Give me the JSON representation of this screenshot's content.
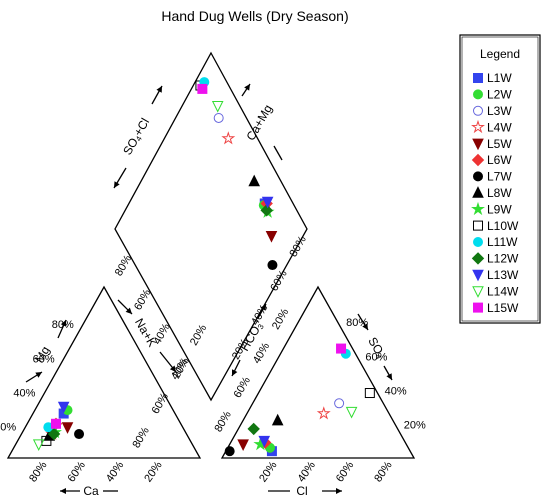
{
  "chart_data": {
    "type": "scatter",
    "subtype": "piper-diagram",
    "title": "Hand Dug Wells (Dry Season)",
    "legend": {
      "title": "Legend",
      "placement": "right"
    },
    "axes": {
      "cation": {
        "left_label": "Mg",
        "bottom_label": "Ca",
        "right_label": "Na+K"
      },
      "anion": {
        "left_label": "HCO",
        "left_sub": "3",
        "bottom_label": "Cl",
        "right_label": "SO",
        "right_sub": "4"
      },
      "diamond": {
        "upper_left_label": "SO",
        "upper_left_sub": "4",
        "upper_left_suffix": "+Cl",
        "upper_right_label": "Ca+Mg"
      },
      "ticks": [
        "20%",
        "40%",
        "60%",
        "80%"
      ]
    },
    "series": [
      {
        "name": "L1W",
        "marker": "square",
        "color": "#3344ee",
        "filled": true,
        "cation": {
          "ca": 58,
          "mg": 26
        },
        "anion": {
          "cl": 24,
          "so4": 4
        },
        "diamond": {
          "so4cl": 28,
          "camg": 84
        }
      },
      {
        "name": "L2W",
        "marker": "circle",
        "color": "#33dd33",
        "filled": true,
        "cation": {
          "ca": 55,
          "mg": 28
        },
        "anion": {
          "cl": 22,
          "so4": 6
        },
        "diamond": {
          "so4cl": 28,
          "camg": 83
        }
      },
      {
        "name": "L3W",
        "marker": "circle",
        "color": "#6666dd",
        "filled": false,
        "cation": {
          "ca": 69,
          "mg": 16
        },
        "anion": {
          "cl": 45,
          "so4": 32
        },
        "diamond": {
          "so4cl": 77,
          "camg": 85
        }
      },
      {
        "name": "L4W",
        "marker": "star",
        "color": "#ee4444",
        "filled": false,
        "cation": {
          "ca": 70,
          "mg": 14
        },
        "anion": {
          "cl": 40,
          "so4": 26
        },
        "diamond": {
          "so4cl": 66,
          "camg": 84
        }
      },
      {
        "name": "L5W",
        "marker": "triangle-down",
        "color": "#880000",
        "filled": true,
        "cation": {
          "ca": 60,
          "mg": 18
        },
        "anion": {
          "cl": 7,
          "so4": 8
        },
        "diamond": {
          "so4cl": 15,
          "camg": 78
        }
      },
      {
        "name": "L6W",
        "marker": "diamond",
        "color": "#ee3333",
        "filled": true,
        "cation": {
          "ca": 65,
          "mg": 20
        },
        "anion": {
          "cl": 18,
          "so4": 9
        },
        "diamond": {
          "so4cl": 27,
          "camg": 85
        }
      },
      {
        "name": "L7W",
        "marker": "circle",
        "color": "#000000",
        "filled": true,
        "cation": {
          "ca": 56,
          "mg": 14
        },
        "anion": {
          "cl": 2,
          "so4": 4
        },
        "diamond": {
          "so4cl": 6,
          "camg": 70
        }
      },
      {
        "name": "L8W",
        "marker": "triangle-up",
        "color": "#000000",
        "filled": true,
        "cation": {
          "ca": 72,
          "mg": 13
        },
        "anion": {
          "cl": 18,
          "so4": 22
        },
        "diamond": {
          "so4cl": 40,
          "camg": 85
        }
      },
      {
        "name": "L9W",
        "marker": "star",
        "color": "#33dd33",
        "filled": true,
        "cation": {
          "ca": 68,
          "mg": 15
        },
        "anion": {
          "cl": 16,
          "so4": 8
        },
        "diamond": {
          "so4cl": 24,
          "camg": 83
        }
      },
      {
        "name": "L10W",
        "marker": "square",
        "color": "#000000",
        "filled": false,
        "cation": {
          "ca": 75,
          "mg": 10
        },
        "anion": {
          "cl": 58,
          "so4": 38
        },
        "diamond": {
          "so4cl": 96,
          "camg": 85
        }
      },
      {
        "name": "L11W",
        "marker": "circle",
        "color": "#00ddee",
        "filled": true,
        "cation": {
          "ca": 70,
          "mg": 18
        },
        "anion": {
          "cl": 34,
          "so4": 61
        },
        "diamond": {
          "so4cl": 95,
          "camg": 88
        }
      },
      {
        "name": "L12W",
        "marker": "diamond",
        "color": "#117711",
        "filled": true,
        "cation": {
          "ca": 69,
          "mg": 14
        },
        "anion": {
          "cl": 8,
          "so4": 17
        },
        "diamond": {
          "so4cl": 25,
          "camg": 83
        }
      },
      {
        "name": "L13W",
        "marker": "triangle-down",
        "color": "#3333ee",
        "filled": true,
        "cation": {
          "ca": 56,
          "mg": 30
        },
        "anion": {
          "cl": 17,
          "so4": 10
        },
        "diamond": {
          "so4cl": 27,
          "camg": 86
        }
      },
      {
        "name": "L14W",
        "marker": "triangle-down",
        "color": "#33dd33",
        "filled": false,
        "cation": {
          "ca": 80,
          "mg": 8
        },
        "anion": {
          "cl": 54,
          "so4": 27
        },
        "diamond": {
          "so4cl": 81,
          "camg": 88
        }
      },
      {
        "name": "L15W",
        "marker": "square",
        "color": "#ee11ee",
        "filled": true,
        "cation": {
          "ca": 65,
          "mg": 20
        },
        "anion": {
          "cl": 30,
          "so4": 64
        },
        "diamond": {
          "so4cl": 94,
          "camg": 85
        }
      }
    ]
  }
}
